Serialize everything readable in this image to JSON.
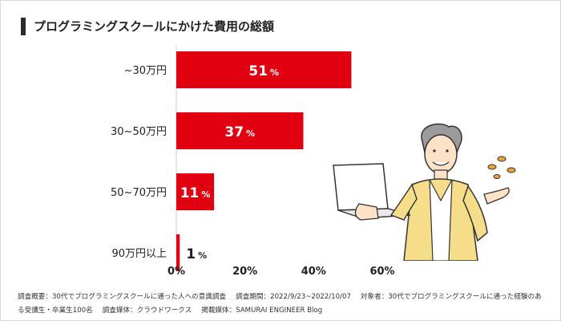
{
  "header": {
    "title": "プログラミングスクールにかけた費用の総額"
  },
  "chart_data": {
    "type": "bar",
    "orientation": "horizontal",
    "title": "プログラミングスクールにかけた費用の総額",
    "categories": [
      "~30万円",
      "30~50万円",
      "50~70万円",
      "90万円以上"
    ],
    "values": [
      51,
      37,
      11,
      1
    ],
    "value_unit": "%",
    "xlim": [
      0,
      60
    ],
    "x_ticks": [
      0,
      20,
      40,
      60
    ],
    "x_tick_labels": [
      "0%",
      "20%",
      "40%",
      "60%"
    ],
    "xlabel": "",
    "ylabel": "",
    "bar_color": "#e00010",
    "label_in_bar_color": "#ffffff",
    "label_out_bar_color": "#222222"
  },
  "footnote": {
    "survey": "調査概要：30代でプログラミングスクールに通った人への意識調査",
    "period": "調査期間：2022/9/23~2022/10/07",
    "target": "対象者：30代でプログラミングスクールに通った経験のある受講生・卒業生100名",
    "medium": "調査媒体：クラウドワークス",
    "publisher": "掲載媒体：SAMURAI ENGINEER Blog"
  }
}
